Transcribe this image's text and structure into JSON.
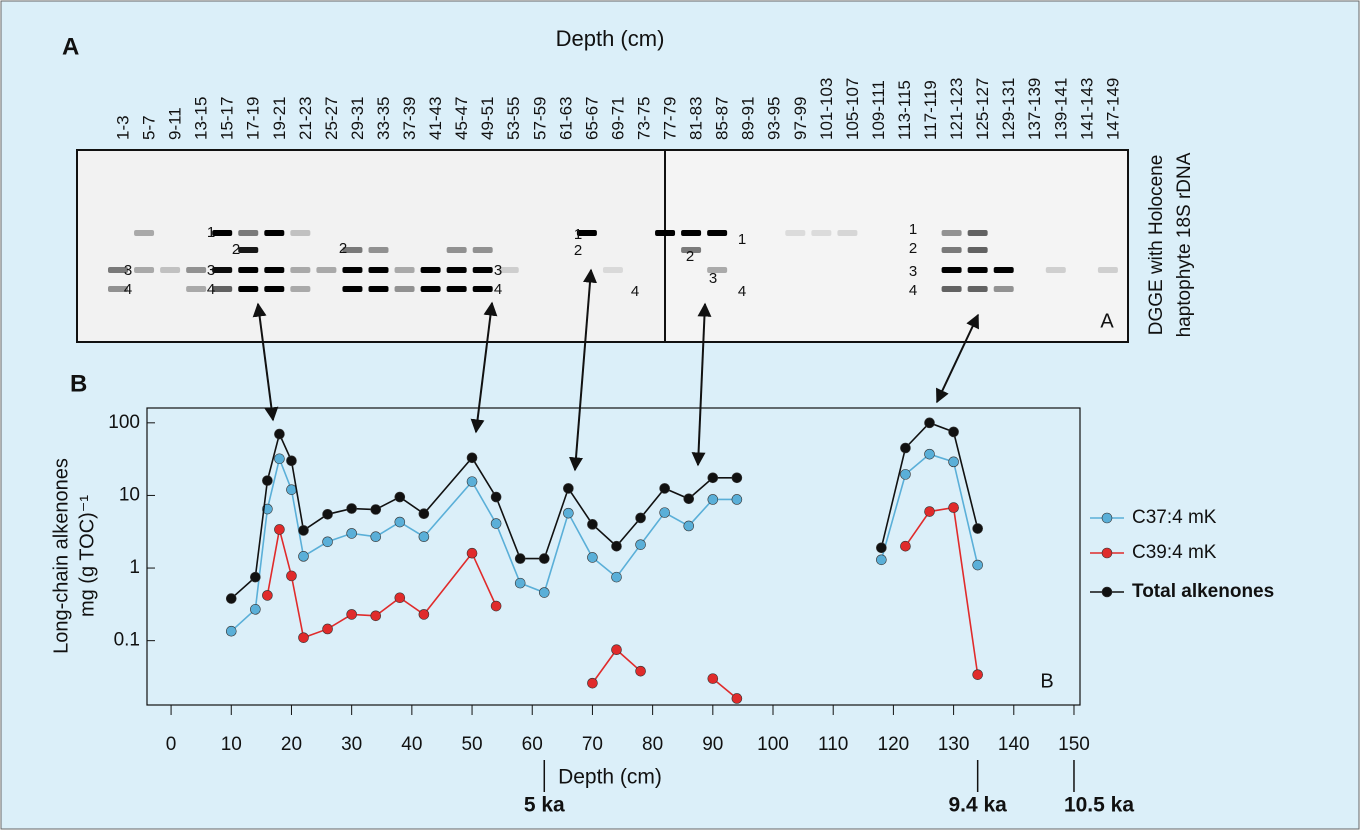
{
  "panel_a": {
    "letter": "A",
    "title": "Depth (cm)",
    "lanes": [
      "1-3",
      "5-7",
      "9-11",
      "13-15",
      "15-17",
      "17-19",
      "19-21",
      "21-23",
      "25-27",
      "29-31",
      "33-35",
      "37-39",
      "41-43",
      "45-47",
      "49-51",
      "53-55",
      "57-59",
      "61-63",
      "65-67",
      "69-71",
      "73-75",
      "77-79",
      "81-83",
      "85-87",
      "89-91",
      "93-95",
      "97-99",
      "101-103",
      "105-107",
      "109-111",
      "113-115",
      "117-119",
      "121-123",
      "125-127",
      "129-131",
      "137-139",
      "139-141",
      "141-143",
      "147-149"
    ],
    "gel_letter": "A",
    "side_label": [
      "DGGE with Holocene",
      "haptophyte 18S rDNA"
    ],
    "band_labels": [
      "3",
      "4",
      "1",
      "2",
      "3",
      "4",
      "2",
      "3",
      "4",
      "1",
      "2",
      "4",
      "1",
      "2",
      "3",
      "4",
      "1",
      "2",
      "3",
      "4"
    ]
  },
  "panel_b_letter": "B",
  "chart_data": {
    "type": "line",
    "y_label": [
      "Long-chain alkenones",
      "mg (g TOC)⁻¹"
    ],
    "x_label": "Depth (cm)",
    "panel_letter": "B",
    "log_y": true,
    "xlim": [
      -4,
      151
    ],
    "xticks": [
      0,
      10,
      20,
      30,
      40,
      50,
      60,
      70,
      80,
      90,
      100,
      110,
      120,
      130,
      140,
      150
    ],
    "ylim": [
      0.013,
      160
    ],
    "yticks": [
      0.1,
      1,
      10,
      100
    ],
    "series": [
      {
        "name": "C37:4 mK",
        "color": "#5aafd8",
        "x": [
          10,
          14,
          16,
          18,
          20,
          22,
          26,
          30,
          34,
          38,
          42,
          50,
          54,
          58,
          62,
          66,
          70,
          74,
          78,
          82,
          86,
          90,
          94,
          98,
          118,
          122,
          126,
          130,
          134
        ],
        "values": [
          0.135,
          0.27,
          6.5,
          32,
          12,
          1.45,
          2.3,
          3.0,
          2.7,
          4.3,
          2.7,
          15.5,
          4.1,
          0.62,
          0.46,
          5.7,
          1.4,
          0.75,
          2.1,
          5.8,
          3.8,
          8.8,
          8.8,
          null,
          1.3,
          19.5,
          37,
          29,
          1.1
        ]
      },
      {
        "name": "C39:4 mK",
        "color": "#e02b2b",
        "x": [
          16,
          18,
          20,
          22,
          26,
          30,
          34,
          38,
          42,
          50,
          54,
          58,
          70,
          74,
          78,
          82,
          90,
          94,
          118,
          122,
          126,
          130,
          134
        ],
        "values": [
          0.42,
          3.4,
          0.78,
          0.11,
          0.145,
          0.23,
          0.22,
          0.39,
          0.23,
          1.6,
          0.3,
          null,
          0.026,
          0.075,
          0.038,
          null,
          0.03,
          0.016,
          null,
          2.0,
          6.0,
          6.8,
          0.034
        ]
      },
      {
        "name": "Total alkenones",
        "color": "#111111",
        "x": [
          10,
          14,
          16,
          18,
          20,
          22,
          26,
          30,
          34,
          38,
          42,
          50,
          54,
          58,
          62,
          66,
          70,
          74,
          78,
          82,
          86,
          90,
          94,
          98,
          118,
          122,
          126,
          130,
          134
        ],
        "values": [
          0.38,
          0.75,
          16,
          70,
          30,
          3.3,
          5.5,
          6.6,
          6.4,
          9.5,
          5.6,
          33,
          9.5,
          1.35,
          1.35,
          12.5,
          4,
          2,
          4.9,
          12.5,
          9,
          17.5,
          17.5,
          null,
          1.9,
          45,
          100,
          75,
          3.5
        ]
      }
    ],
    "annotations": [
      {
        "x": 62,
        "label": "5 ka"
      },
      {
        "x": 134,
        "label": "9.4 ka"
      },
      {
        "x": 150,
        "label": "10.5 ka"
      }
    ]
  }
}
